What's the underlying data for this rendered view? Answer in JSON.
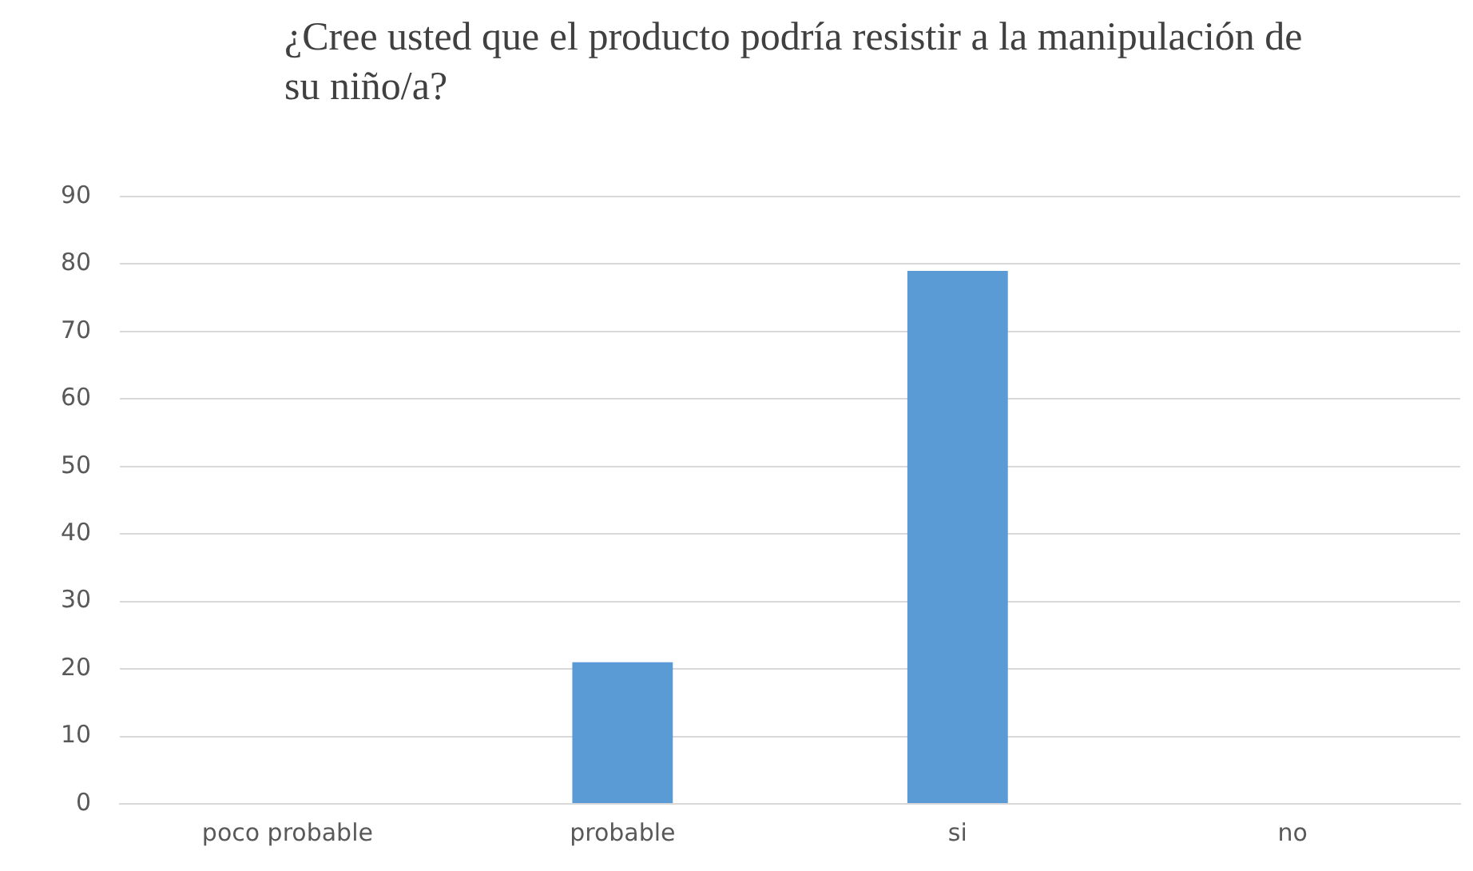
{
  "chart_data": {
    "type": "bar",
    "title": "¿Cree usted que el producto podría resistir a la manipulación de su niño/a?",
    "categories": [
      "poco probable",
      "probable",
      "si",
      "no"
    ],
    "values": [
      0,
      21,
      79,
      0
    ],
    "color": "#5b9bd5",
    "ylim": [
      0,
      90
    ],
    "yticks": [
      0,
      10,
      20,
      30,
      40,
      50,
      60,
      70,
      80,
      90
    ],
    "grid": "y",
    "legend": false
  }
}
